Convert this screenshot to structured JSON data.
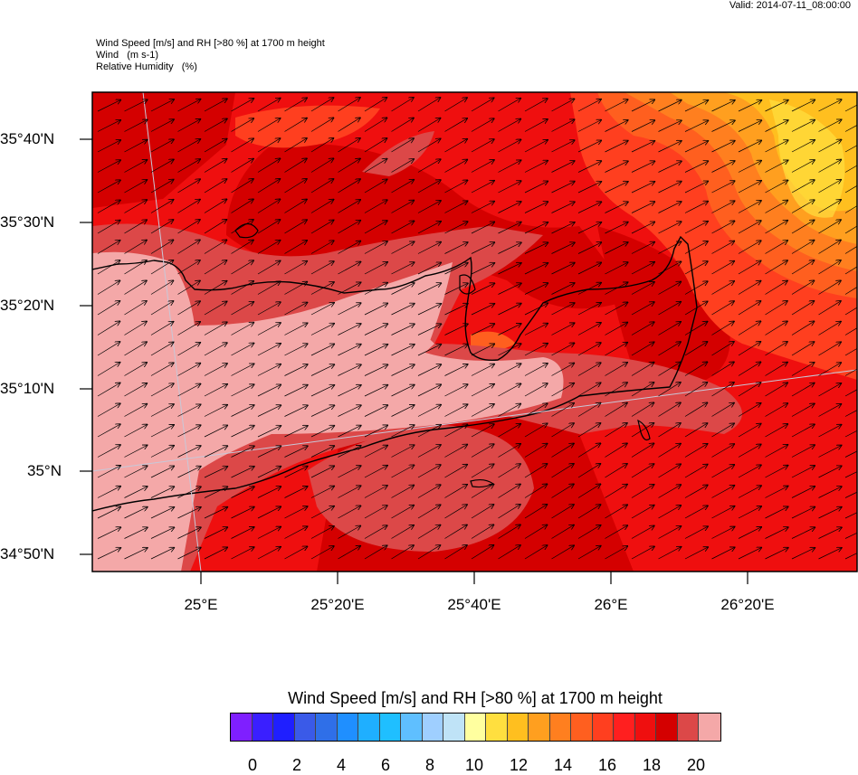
{
  "valid_time": "Valid: 2014-07-11_08:00:00",
  "header": {
    "line1": "Wind Speed [m/s] and RH [>80 %] at 1700 m height",
    "line2": "Wind   (m s-1)",
    "line3": "Relative Humidity   (%)"
  },
  "map": {
    "lat_labels": [
      "35°40'N",
      "35°30'N",
      "35°20'N",
      "35°10'N",
      "35°N",
      "34°50'N"
    ],
    "lon_labels": [
      "25°E",
      "25°20'E",
      "25°40'E",
      "26°E",
      "26°20'E"
    ],
    "wind_direction": "WSW to ENE (arrows pointing north-east)"
  },
  "colorbar": {
    "title": "Wind Speed [m/s] and RH [>80 %] at 1700 m height",
    "ticks": [
      "0",
      "2",
      "4",
      "6",
      "8",
      "10",
      "12",
      "14",
      "16",
      "18",
      "20"
    ],
    "colors": [
      "#7f1fff",
      "#3a1fff",
      "#1f1fff",
      "#3a5ae8",
      "#2f6fe8",
      "#1f8fff",
      "#1fafff",
      "#1fbfff",
      "#5fbfff",
      "#9fcfff",
      "#bfe3f7",
      "#ffff9f",
      "#ffdf3f",
      "#ffbf1f",
      "#ff9f1f",
      "#ff7f1f",
      "#ff5f1f",
      "#ff3f1f",
      "#ff1f1f",
      "#ef0f0f",
      "#d40000",
      "#dc4848",
      "#f4a8a8"
    ]
  },
  "colors": {
    "low_wind": "#ffdf3f",
    "mid_wind": "#ff7f1f",
    "high_wind": "#ef0f0f",
    "very_high": "#d40000",
    "rh_band": "#dc4848",
    "rh_high": "#f4a8a8"
  }
}
